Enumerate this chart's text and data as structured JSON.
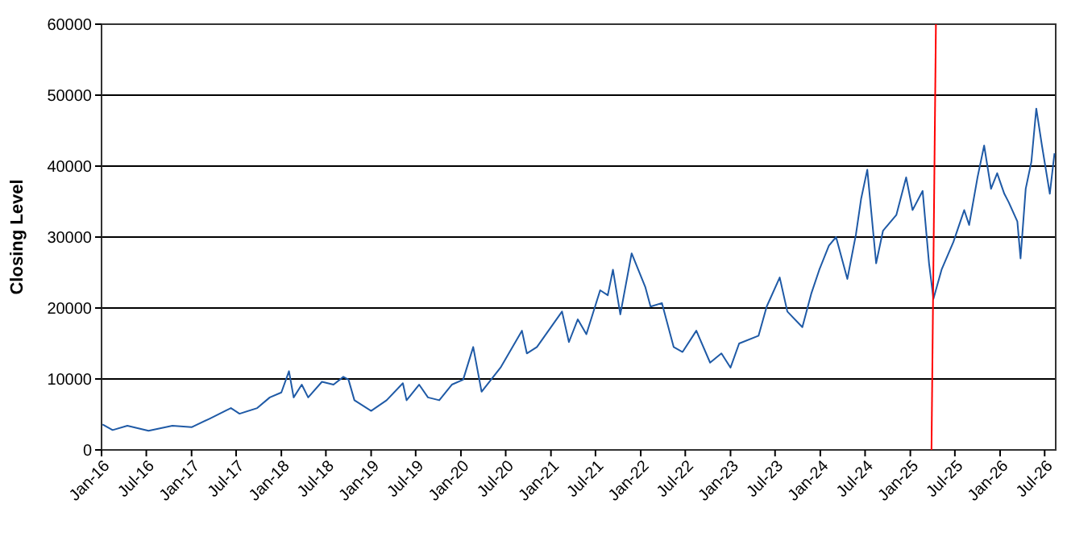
{
  "chart_data": {
    "type": "line",
    "ylabel": "Closing Level",
    "xlim": [
      "2016-01-01",
      "2026-08-15"
    ],
    "ylim": [
      0,
      60000
    ],
    "yticks": [
      0,
      10000,
      20000,
      30000,
      40000,
      50000,
      60000
    ],
    "xticks": [
      {
        "value": "2016-01-01",
        "label": "Jan-16"
      },
      {
        "value": "2016-07-01",
        "label": "Jul-16"
      },
      {
        "value": "2017-01-01",
        "label": "Jan-17"
      },
      {
        "value": "2017-07-01",
        "label": "Jul-17"
      },
      {
        "value": "2018-01-01",
        "label": "Jan-18"
      },
      {
        "value": "2018-07-01",
        "label": "Jul-18"
      },
      {
        "value": "2019-01-01",
        "label": "Jan-19"
      },
      {
        "value": "2019-07-01",
        "label": "Jul-19"
      },
      {
        "value": "2020-01-01",
        "label": "Jan-20"
      },
      {
        "value": "2020-07-01",
        "label": "Jul-20"
      },
      {
        "value": "2021-01-01",
        "label": "Jan-21"
      },
      {
        "value": "2021-07-01",
        "label": "Jul-21"
      },
      {
        "value": "2022-01-01",
        "label": "Jan-22"
      },
      {
        "value": "2022-07-01",
        "label": "Jul-22"
      },
      {
        "value": "2023-01-01",
        "label": "Jan-23"
      },
      {
        "value": "2023-07-01",
        "label": "Jul-23"
      },
      {
        "value": "2024-01-01",
        "label": "Jan-24"
      },
      {
        "value": "2024-07-01",
        "label": "Jul-24"
      },
      {
        "value": "2025-01-01",
        "label": "Jan-25"
      },
      {
        "value": "2025-07-01",
        "label": "Jul-25"
      },
      {
        "value": "2026-01-01",
        "label": "Jan-26"
      },
      {
        "value": "2026-07-01",
        "label": "Jul-26"
      }
    ],
    "grid": "y",
    "marker": "none",
    "line_style": "solid",
    "series": [
      {
        "color": "#1f5aa6",
        "x": [
          "2016-01-05",
          "2016-02-15",
          "2016-04-15",
          "2016-07-10",
          "2016-10-15",
          "2017-01-01",
          "2017-03-15",
          "2017-06-10",
          "2017-07-15",
          "2017-09-25",
          "2017-11-15",
          "2018-01-01",
          "2018-02-01",
          "2018-02-20",
          "2018-03-25",
          "2018-04-20",
          "2018-06-15",
          "2018-08-01",
          "2018-09-10",
          "2018-10-01",
          "2018-10-25",
          "2019-01-01",
          "2019-03-05",
          "2019-05-10",
          "2019-05-25",
          "2019-07-15",
          "2019-08-20",
          "2019-10-05",
          "2019-11-25",
          "2020-01-10",
          "2020-02-20",
          "2020-03-25",
          "2020-06-10",
          "2020-09-05",
          "2020-09-25",
          "2020-11-05",
          "2021-02-15",
          "2021-03-15",
          "2021-04-20",
          "2021-05-25",
          "2021-07-20",
          "2021-08-20",
          "2021-09-10",
          "2021-10-10",
          "2021-11-25",
          "2022-01-20",
          "2022-02-10",
          "2022-03-28",
          "2022-05-15",
          "2022-06-20",
          "2022-08-15",
          "2022-10-10",
          "2022-11-25",
          "2023-01-01",
          "2023-02-05",
          "2023-04-25",
          "2023-05-28",
          "2023-07-20",
          "2023-08-20",
          "2023-10-20",
          "2023-11-25",
          "2023-12-28",
          "2024-02-05",
          "2024-03-05",
          "2024-04-20",
          "2024-05-25",
          "2024-06-15",
          "2024-07-10",
          "2024-08-15",
          "2024-09-12",
          "2024-11-05",
          "2024-12-15",
          "2025-01-10",
          "2025-02-20",
          "2025-03-18",
          "2025-04-05",
          "2025-05-08",
          "2025-06-25",
          "2025-08-08",
          "2025-08-28",
          "2025-10-01",
          "2025-10-28",
          "2025-11-25",
          "2025-12-20",
          "2026-01-18",
          "2026-02-05",
          "2026-03-12",
          "2026-03-25",
          "2026-04-15",
          "2026-05-08",
          "2026-05-28",
          "2026-06-20",
          "2026-07-22",
          "2026-08-10"
        ],
        "values": [
          3600,
          2800,
          3400,
          2700,
          3400,
          3200,
          4400,
          5900,
          5100,
          5900,
          7400,
          8100,
          11100,
          7400,
          9200,
          7400,
          9600,
          9200,
          10300,
          9900,
          7000,
          5500,
          7000,
          9400,
          7000,
          9200,
          7400,
          7000,
          9200,
          9900,
          14500,
          8200,
          11600,
          16800,
          13600,
          14500,
          19500,
          15200,
          18400,
          16300,
          22500,
          21800,
          25400,
          19100,
          27700,
          22900,
          20200,
          20700,
          14500,
          13800,
          16800,
          12300,
          13600,
          11600,
          15000,
          16100,
          20200,
          24300,
          19500,
          17300,
          22000,
          25400,
          28800,
          30000,
          24100,
          30400,
          35400,
          39500,
          26300,
          30900,
          33100,
          38400,
          33800,
          36500,
          26300,
          21300,
          25400,
          29300,
          33800,
          31700,
          38400,
          42900,
          36800,
          39000,
          36100,
          34900,
          32200,
          27000,
          36800,
          40600,
          48100,
          42900,
          36100,
          41800
        ]
      },
      {
        "color": "#ff0000",
        "x": [
          "2025-03-28",
          "2025-04-15"
        ],
        "values": [
          0,
          60000
        ]
      }
    ]
  }
}
